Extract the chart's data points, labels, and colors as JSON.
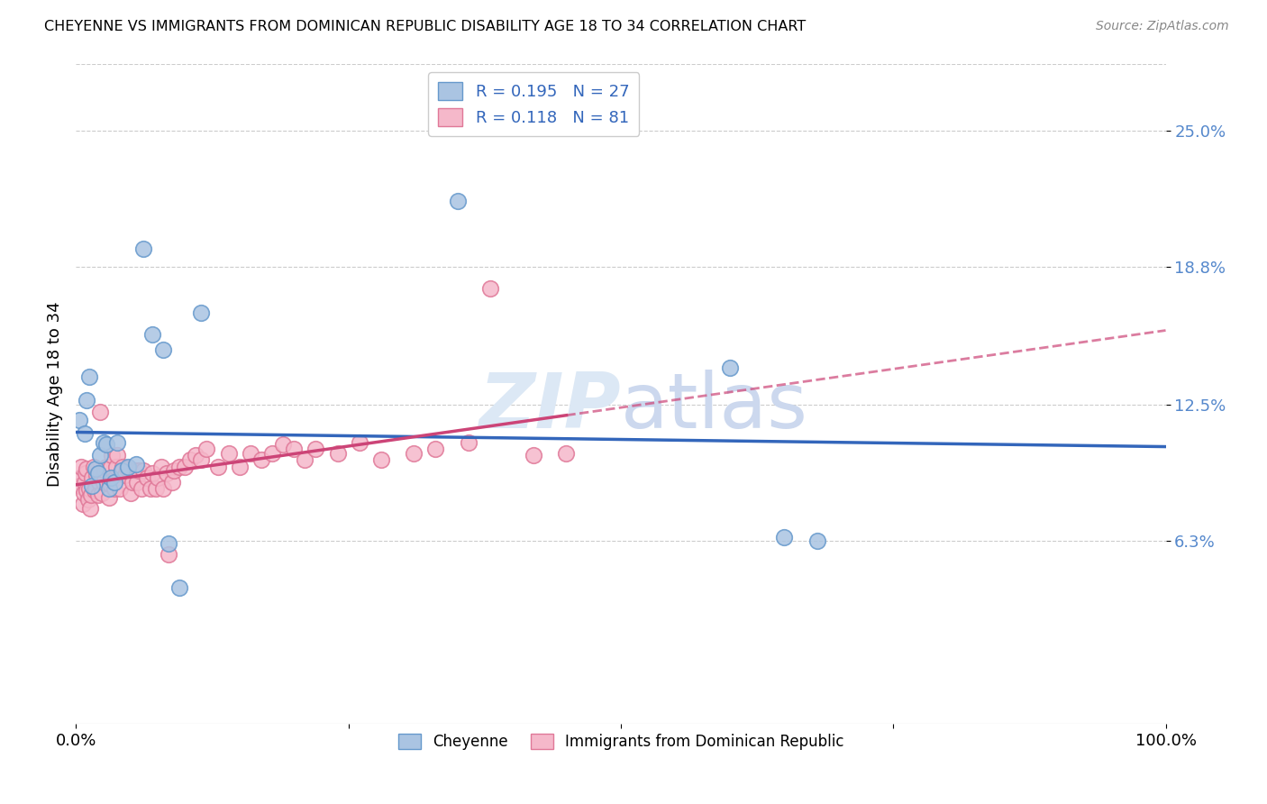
{
  "title": "CHEYENNE VS IMMIGRANTS FROM DOMINICAN REPUBLIC DISABILITY AGE 18 TO 34 CORRELATION CHART",
  "source": "Source: ZipAtlas.com",
  "ylabel": "Disability Age 18 to 34",
  "ytick_labels": [
    "6.3%",
    "12.5%",
    "18.8%",
    "25.0%"
  ],
  "ytick_values": [
    0.063,
    0.125,
    0.188,
    0.25
  ],
  "xlim": [
    0.0,
    1.0
  ],
  "ylim": [
    -0.02,
    0.28
  ],
  "cheyenne_color": "#aac4e2",
  "cheyenne_edge_color": "#6699cc",
  "dominican_color": "#f5b8ca",
  "dominican_edge_color": "#e07898",
  "trend_cheyenne_color": "#3366bb",
  "trend_dominican_color": "#cc4477",
  "watermark_color": "#dce8f5",
  "cheyenne_x": [
    0.003,
    0.008,
    0.01,
    0.012,
    0.015,
    0.018,
    0.02,
    0.022,
    0.025,
    0.028,
    0.03,
    0.032,
    0.035,
    0.038,
    0.042,
    0.048,
    0.055,
    0.062,
    0.07,
    0.08,
    0.085,
    0.095,
    0.115,
    0.35,
    0.6,
    0.65,
    0.68
  ],
  "cheyenne_y": [
    0.118,
    0.112,
    0.127,
    0.138,
    0.088,
    0.096,
    0.094,
    0.102,
    0.108,
    0.107,
    0.087,
    0.092,
    0.09,
    0.108,
    0.095,
    0.097,
    0.098,
    0.196,
    0.157,
    0.15,
    0.062,
    0.042,
    0.167,
    0.218,
    0.142,
    0.065,
    0.063
  ],
  "dominican_x": [
    0.003,
    0.004,
    0.005,
    0.006,
    0.007,
    0.008,
    0.009,
    0.01,
    0.01,
    0.011,
    0.012,
    0.013,
    0.014,
    0.015,
    0.016,
    0.017,
    0.018,
    0.019,
    0.02,
    0.021,
    0.022,
    0.024,
    0.025,
    0.026,
    0.028,
    0.03,
    0.031,
    0.032,
    0.033,
    0.035,
    0.036,
    0.037,
    0.038,
    0.04,
    0.041,
    0.043,
    0.045,
    0.047,
    0.05,
    0.052,
    0.054,
    0.056,
    0.058,
    0.06,
    0.062,
    0.065,
    0.068,
    0.07,
    0.073,
    0.075,
    0.078,
    0.08,
    0.083,
    0.085,
    0.088,
    0.09,
    0.095,
    0.1,
    0.105,
    0.11,
    0.115,
    0.12,
    0.13,
    0.14,
    0.15,
    0.16,
    0.17,
    0.18,
    0.19,
    0.2,
    0.21,
    0.22,
    0.24,
    0.26,
    0.28,
    0.31,
    0.33,
    0.36,
    0.38,
    0.42,
    0.45
  ],
  "dominican_y": [
    0.088,
    0.092,
    0.097,
    0.08,
    0.085,
    0.09,
    0.094,
    0.086,
    0.096,
    0.082,
    0.087,
    0.078,
    0.084,
    0.092,
    0.097,
    0.086,
    0.087,
    0.093,
    0.084,
    0.09,
    0.122,
    0.085,
    0.09,
    0.095,
    0.097,
    0.083,
    0.089,
    0.097,
    0.102,
    0.087,
    0.092,
    0.097,
    0.102,
    0.087,
    0.094,
    0.097,
    0.093,
    0.096,
    0.085,
    0.09,
    0.095,
    0.09,
    0.095,
    0.087,
    0.095,
    0.092,
    0.087,
    0.094,
    0.087,
    0.092,
    0.097,
    0.087,
    0.094,
    0.057,
    0.09,
    0.095,
    0.097,
    0.097,
    0.1,
    0.102,
    0.1,
    0.105,
    0.097,
    0.103,
    0.097,
    0.103,
    0.1,
    0.103,
    0.107,
    0.105,
    0.1,
    0.105,
    0.103,
    0.108,
    0.1,
    0.103,
    0.105,
    0.108,
    0.178,
    0.102,
    0.103
  ],
  "cheyenne_R": 0.195,
  "cheyenne_N": 27,
  "dominican_R": 0.118,
  "dominican_N": 81,
  "legend_cheyenne": "Cheyenne",
  "legend_dominican": "Immigrants from Dominican Republic"
}
